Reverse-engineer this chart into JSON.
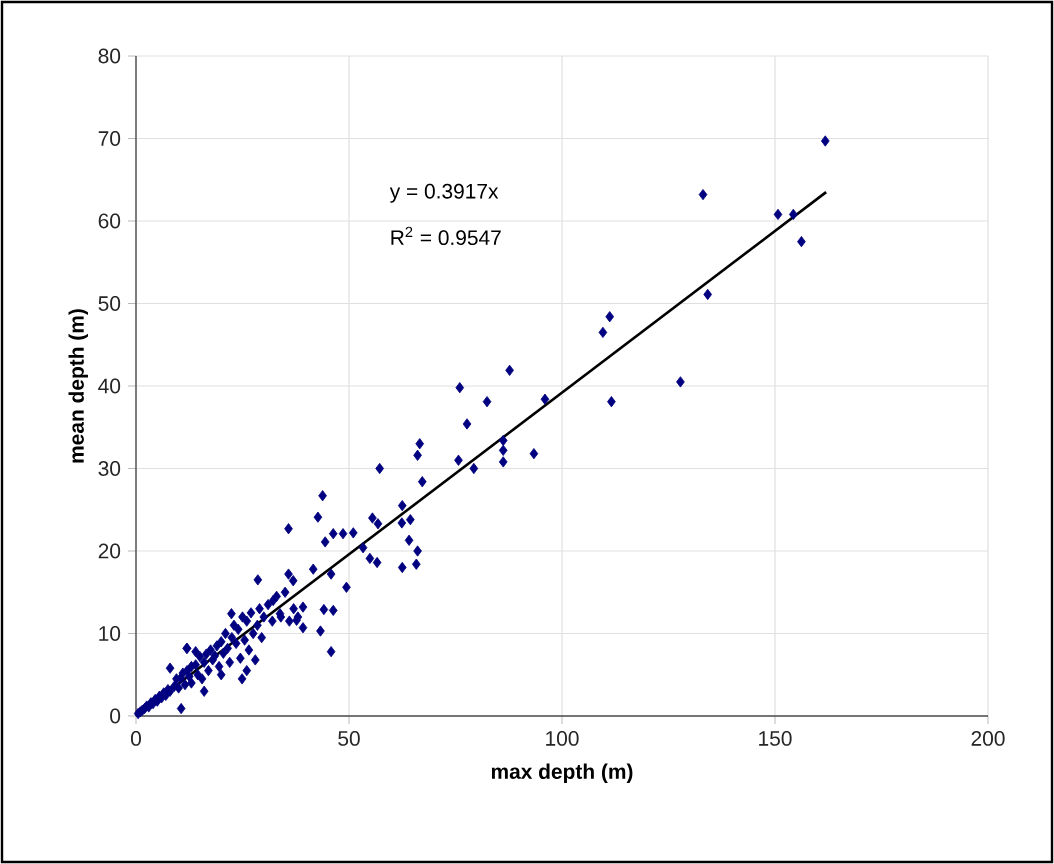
{
  "chart_data": {
    "type": "scatter",
    "xlabel": "max depth (m)",
    "ylabel": "mean depth (m)",
    "xlim": [
      0,
      200
    ],
    "ylim": [
      0,
      80
    ],
    "xticks": [
      0,
      50,
      100,
      150,
      200
    ],
    "yticks": [
      0,
      10,
      20,
      30,
      40,
      50,
      60,
      70,
      80
    ],
    "grid": true,
    "marker": "diamond",
    "annotations": [
      "y = 0.3917x",
      "R$^{2}$ = 0.9547"
    ],
    "series": [
      {
        "color": "#000080",
        "x": [
          161.8,
          133.1,
          150.7,
          154.3,
          156.2,
          134.2,
          111.2,
          109.6,
          127.8,
          111.6,
          87.7,
          76.0,
          82.4,
          96.0,
          77.7,
          86.2,
          86.2,
          86.2,
          93.4,
          75.7,
          79.3,
          66.6,
          66.1,
          67.2,
          57.2,
          62.5,
          62.4,
          64.4,
          55.5,
          56.8,
          64.1,
          66.1,
          62.5,
          65.8,
          56.6,
          54.9,
          53.3,
          51.0,
          48.6,
          46.3,
          43.8,
          42.7,
          35.8,
          49.4,
          45.8,
          41.6,
          44.4,
          43.3,
          45.8,
          46.3,
          44.1,
          28.6,
          35.8,
          36.9,
          39.2,
          39.2,
          37.7,
          33.8,
          32.2,
          10.6,
          11.9,
          22.4,
          24.9,
          0.5,
          1,
          1.5,
          2,
          2.5,
          3,
          3.5,
          4,
          4.5,
          5,
          5.5,
          6,
          6.5,
          7,
          7.5,
          8,
          8,
          9,
          9.5,
          10,
          10.5,
          11,
          11.5,
          12,
          12.5,
          13,
          13,
          14,
          14.5,
          15,
          15.5,
          16,
          16.5,
          17,
          17.5,
          18,
          18.5,
          19,
          19.5,
          20,
          20.5,
          21,
          21.5,
          22,
          22.5,
          23,
          23.5,
          24,
          24.5,
          25,
          25.5,
          26,
          26.5,
          27,
          27.5,
          28,
          28.5,
          29,
          29.5,
          30,
          31,
          32,
          33,
          34,
          35,
          36,
          37,
          38,
          12,
          14,
          16,
          20,
          26
        ],
        "values": [
          69.7,
          63.2,
          60.8,
          60.8,
          57.5,
          51.1,
          48.4,
          46.5,
          40.5,
          38.1,
          41.9,
          39.8,
          38.1,
          38.4,
          35.4,
          33.4,
          32.2,
          30.8,
          31.8,
          31.0,
          30.0,
          33.0,
          31.6,
          28.4,
          30.0,
          25.5,
          23.4,
          23.8,
          24.0,
          23.3,
          21.3,
          20.0,
          18.0,
          18.4,
          18.6,
          19.1,
          20.4,
          22.2,
          22.1,
          22.1,
          26.7,
          24.1,
          22.7,
          15.6,
          17.2,
          17.8,
          21.1,
          10.3,
          7.8,
          12.8,
          12.9,
          16.5,
          17.2,
          16.4,
          13.2,
          10.7,
          11.6,
          12.4,
          14.0,
          0.9,
          8.2,
          12.4,
          4.5,
          0.3,
          0.5,
          0.7,
          0.9,
          1.2,
          1.1,
          1.6,
          1.5,
          2.0,
          1.8,
          2.4,
          2.2,
          2.8,
          2.5,
          3.2,
          5.8,
          3.0,
          3.6,
          4.5,
          3.4,
          4.6,
          5.2,
          3.8,
          5.5,
          4.8,
          6.0,
          4.0,
          6.2,
          5.0,
          7.2,
          4.5,
          6.5,
          7.5,
          5.5,
          8.0,
          6.8,
          7.3,
          8.5,
          6.0,
          9.0,
          7.6,
          10.0,
          8.2,
          6.5,
          9.5,
          11.0,
          8.8,
          10.5,
          7.0,
          12.0,
          9.2,
          11.5,
          8.0,
          12.5,
          10.0,
          6.8,
          11.0,
          13.0,
          9.5,
          12.0,
          13.5,
          11.5,
          14.5,
          12.0,
          15.0,
          11.5,
          13.0,
          12.0,
          8.2,
          7.8,
          3.0,
          5.0,
          5.5
        ]
      },
      {
        "type": "line",
        "color": "#000000",
        "marker": "none",
        "x": [
          0,
          162
        ],
        "values": [
          0,
          63.5
        ]
      }
    ]
  }
}
